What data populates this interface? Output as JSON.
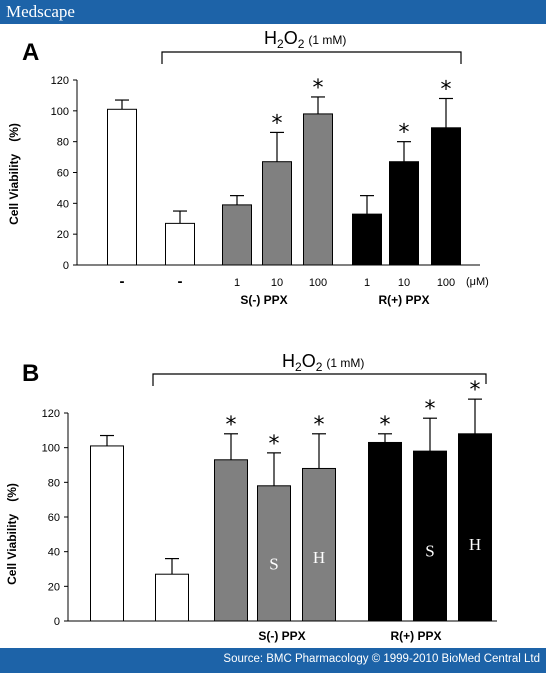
{
  "header": {
    "brand": "Medscape"
  },
  "footer": {
    "source": "Source: BMC Pharmacology © 1999-2010 BioMed Central Ltd"
  },
  "colors": {
    "banner": "#1d63a8",
    "control": "#ffffff",
    "s_ppx": "#808080",
    "r_ppx": "#000000"
  },
  "chart_data": [
    {
      "type": "bar",
      "panel_label": "A",
      "treatment_label": "H2O2",
      "treatment_dose": "(1 mM)",
      "ylabel": "Cell Viability",
      "ylabel_unit": "(%)",
      "ylim": [
        0,
        120
      ],
      "yticks": [
        "0",
        "20",
        "40",
        "60",
        "80",
        "100",
        "120"
      ],
      "unit_label": "(μM)",
      "group_labels": [
        "S(-) PPX",
        "R(+) PPX"
      ],
      "bars": [
        {
          "category": "-",
          "value": 101,
          "error": 6,
          "star": false,
          "color": "#ffffff",
          "text": ""
        },
        {
          "category": "-",
          "value": 27,
          "error": 8,
          "star": false,
          "color": "#ffffff",
          "text": ""
        },
        {
          "category": "1",
          "value": 39,
          "error": 6,
          "star": false,
          "color": "#808080",
          "text": ""
        },
        {
          "category": "10",
          "value": 67,
          "error": 19,
          "star": true,
          "color": "#808080",
          "text": ""
        },
        {
          "category": "100",
          "value": 98,
          "error": 11,
          "star": true,
          "color": "#808080",
          "text": ""
        },
        {
          "category": "1",
          "value": 33,
          "error": 12,
          "star": false,
          "color": "#000000",
          "text": ""
        },
        {
          "category": "10",
          "value": 67,
          "error": 13,
          "star": true,
          "color": "#000000",
          "text": ""
        },
        {
          "category": "100",
          "value": 89,
          "error": 19,
          "star": true,
          "color": "#000000",
          "text": ""
        }
      ]
    },
    {
      "type": "bar",
      "panel_label": "B",
      "treatment_label": "H2O2",
      "treatment_dose": "(1 mM)",
      "ylabel": "Cell Viability",
      "ylabel_unit": "(%)",
      "ylim": [
        0,
        120
      ],
      "yticks": [
        "0",
        "20",
        "40",
        "60",
        "80",
        "100",
        "120"
      ],
      "unit_label": "",
      "group_labels": [
        "S(-) PPX",
        "R(+) PPX"
      ],
      "bars": [
        {
          "category": "",
          "value": 101,
          "error": 6,
          "star": false,
          "color": "#ffffff",
          "text": ""
        },
        {
          "category": "",
          "value": 27,
          "error": 9,
          "star": false,
          "color": "#ffffff",
          "text": ""
        },
        {
          "category": "",
          "value": 93,
          "error": 15,
          "star": true,
          "color": "#808080",
          "text": ""
        },
        {
          "category": "",
          "value": 78,
          "error": 19,
          "star": true,
          "color": "#808080",
          "text": "S"
        },
        {
          "category": "",
          "value": 88,
          "error": 20,
          "star": true,
          "color": "#808080",
          "text": "H"
        },
        {
          "category": "",
          "value": 103,
          "error": 5,
          "star": true,
          "color": "#000000",
          "text": ""
        },
        {
          "category": "",
          "value": 98,
          "error": 19,
          "star": true,
          "color": "#000000",
          "text": "S"
        },
        {
          "category": "",
          "value": 108,
          "error": 20,
          "star": true,
          "color": "#000000",
          "text": "H"
        }
      ]
    }
  ]
}
